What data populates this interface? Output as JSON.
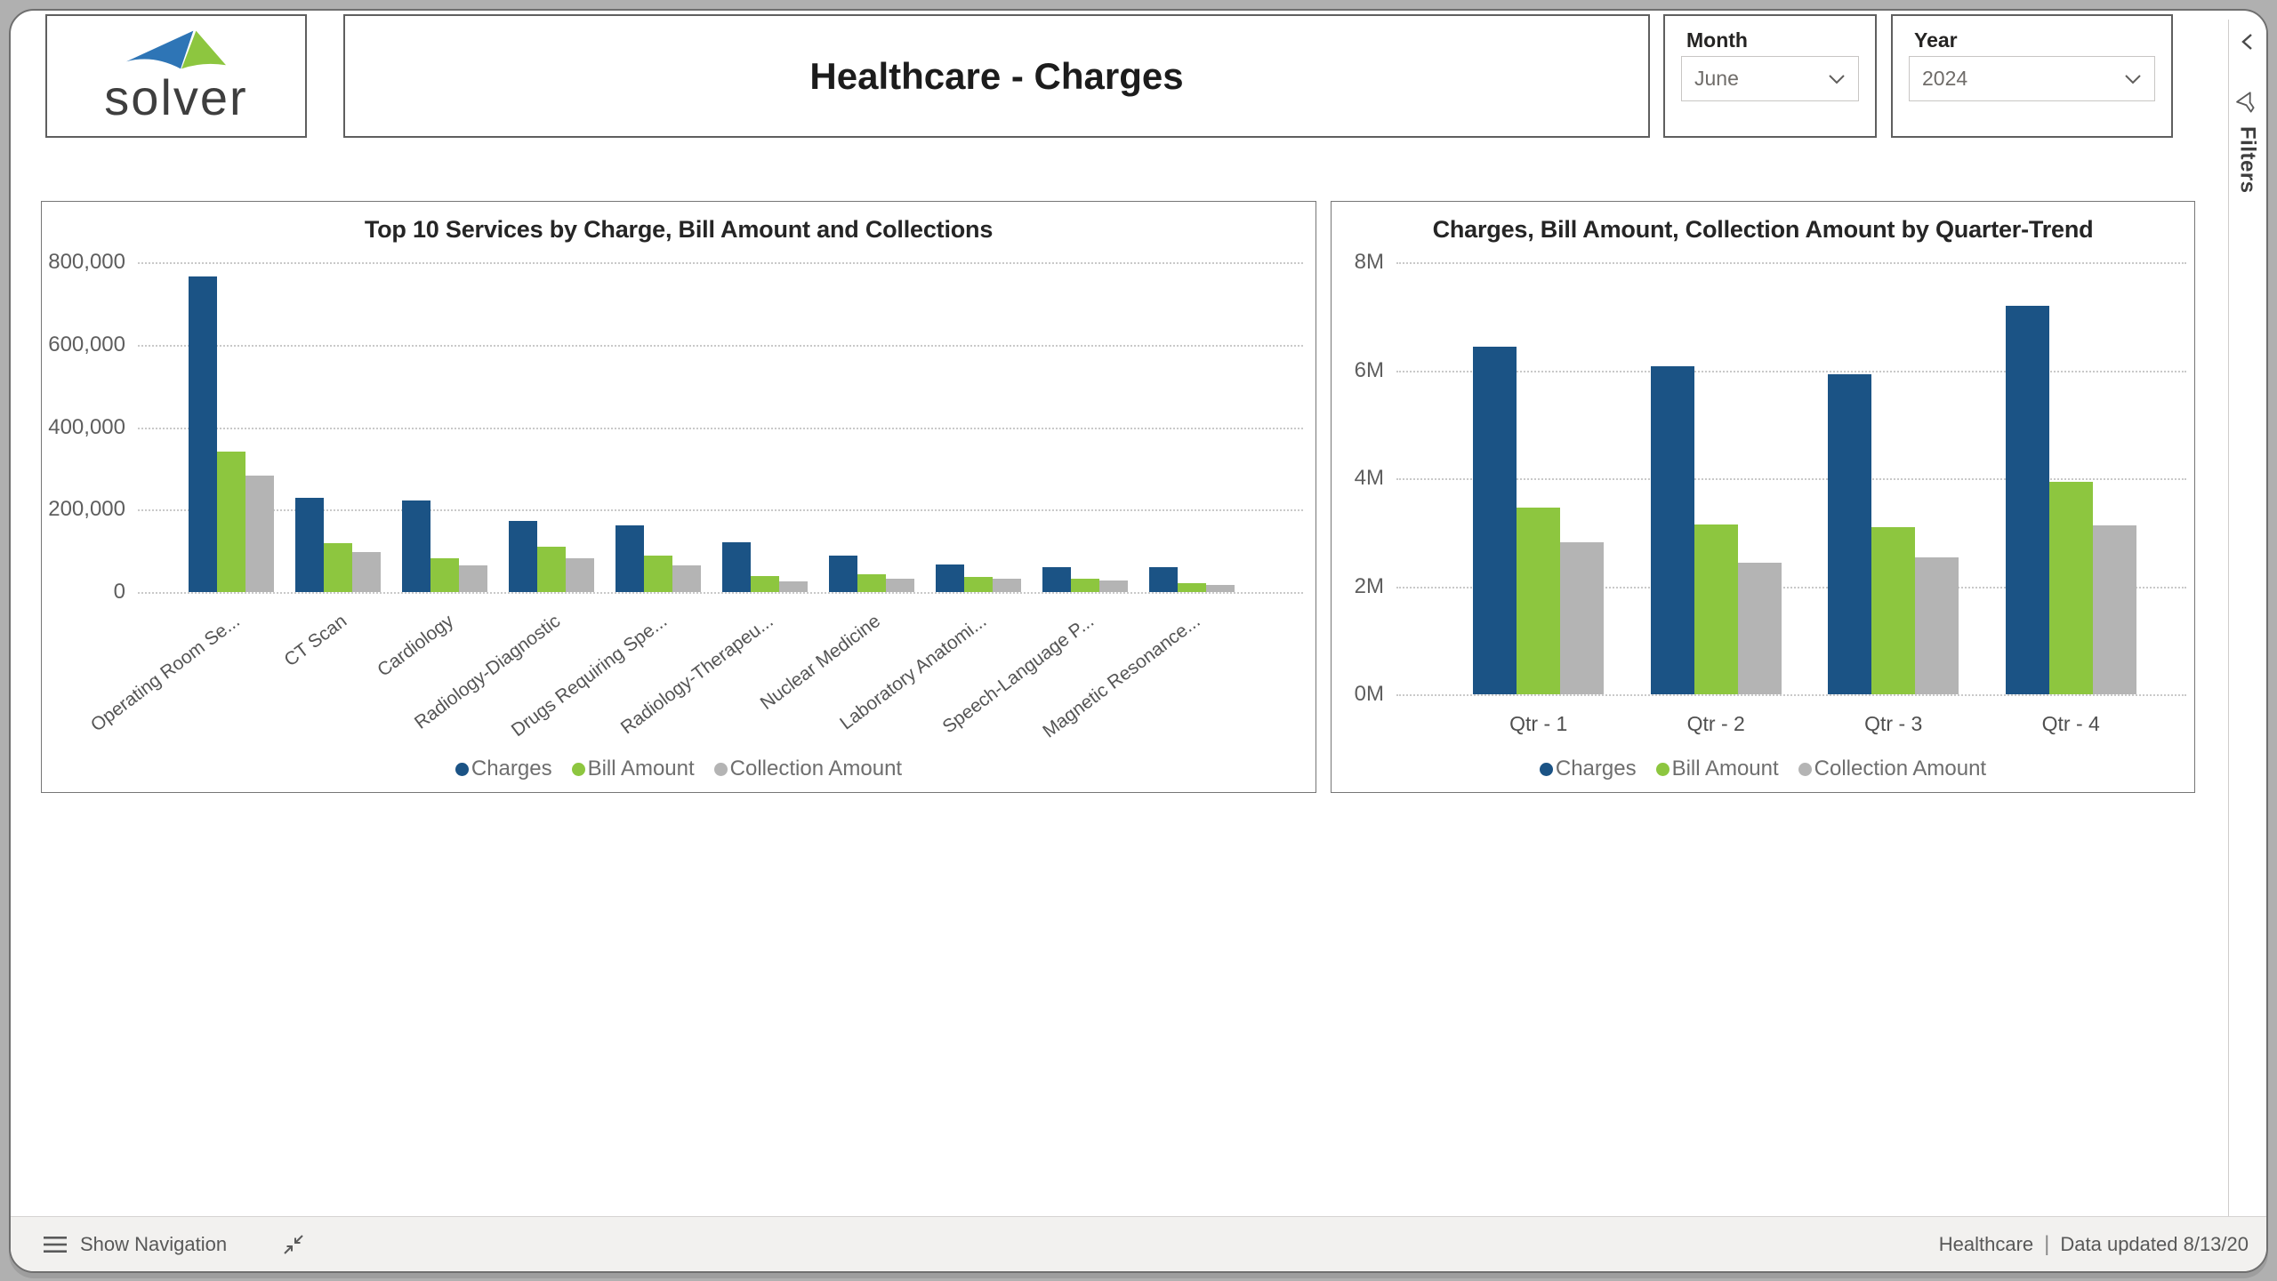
{
  "header": {
    "logo_text": "solver",
    "title": "Healthcare - Charges",
    "month_filter": {
      "label": "Month",
      "value": "June"
    },
    "year_filter": {
      "label": "Year",
      "value": "2024"
    }
  },
  "filters_pane": {
    "label": "Filters"
  },
  "footer": {
    "show_navigation_label": "Show Navigation",
    "report_name": "Healthcare",
    "separator": "|",
    "data_updated": "Data updated 8/13/20"
  },
  "colors": {
    "charges": "#1B5385",
    "bill_amount": "#8DC63F",
    "collection_amount": "#B4B4B4"
  },
  "chart_data": [
    {
      "type": "bar",
      "title": "Top 10 Services by Charge, Bill Amount and Collections",
      "categories": [
        "Operating Room Se...",
        "CT Scan",
        "Cardiology",
        "Radiology-Diagnostic",
        "Drugs Requiring Spe...",
        "Radiology-Therapeu...",
        "Nuclear Medicine",
        "Laboratory Anatomi...",
        "Speech-Language P...",
        "Magnetic Resonance..."
      ],
      "series": [
        {
          "name": "Charges",
          "color": "#1B5385",
          "values": [
            765000,
            228000,
            222000,
            172000,
            161000,
            120000,
            88000,
            66000,
            60000,
            60000
          ]
        },
        {
          "name": "Bill Amount",
          "color": "#8DC63F",
          "values": [
            340000,
            118000,
            81000,
            111000,
            88000,
            38000,
            43000,
            36000,
            32000,
            21000
          ]
        },
        {
          "name": "Collection Amount",
          "color": "#B4B4B4",
          "values": [
            283000,
            96000,
            64000,
            81000,
            64000,
            26000,
            32000,
            32000,
            28000,
            17000
          ]
        }
      ],
      "ylim": [
        0,
        800000
      ],
      "yticks": [
        "800,000",
        "600,000",
        "400,000",
        "200,000",
        "0"
      ],
      "grid": "dotted",
      "legend_position": "bottom",
      "x_label_rotation": -37
    },
    {
      "type": "bar",
      "title": "Charges, Bill Amount, Collection Amount by Quarter-Trend",
      "categories": [
        "Qtr - 1",
        "Qtr - 2",
        "Qtr - 3",
        "Qtr - 4"
      ],
      "series": [
        {
          "name": "Charges",
          "color": "#1B5385",
          "values": [
            6440000,
            6080000,
            5930000,
            7200000
          ]
        },
        {
          "name": "Bill Amount",
          "color": "#8DC63F",
          "values": [
            3460000,
            3150000,
            3100000,
            3930000
          ]
        },
        {
          "name": "Collection Amount",
          "color": "#B4B4B4",
          "values": [
            2820000,
            2440000,
            2540000,
            3130000
          ]
        }
      ],
      "ylim": [
        0,
        8000000
      ],
      "yticks": [
        "8M",
        "6M",
        "4M",
        "2M",
        "0M"
      ],
      "grid": "dotted",
      "legend_position": "bottom",
      "x_label_rotation": 0
    }
  ]
}
